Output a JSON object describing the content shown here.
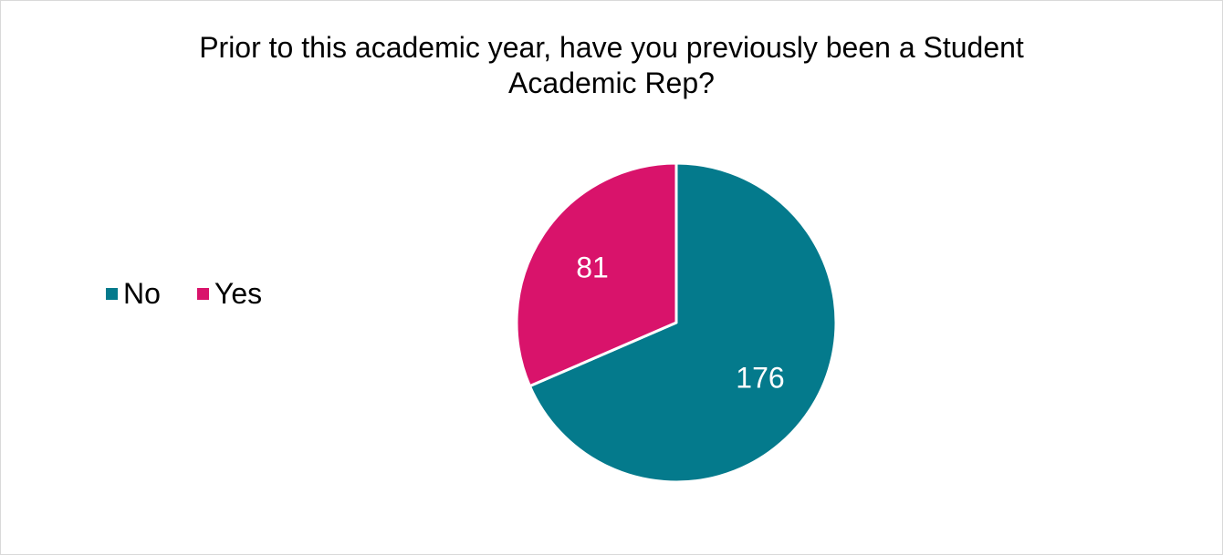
{
  "chart_data": {
    "type": "pie",
    "title": "Prior to this academic year, have you previously been a Student Academic Rep?",
    "title_lines": [
      "Prior to this academic year, have you previously been a Student",
      "Academic Rep?"
    ],
    "categories": [
      "No",
      "Yes"
    ],
    "values": [
      176,
      81
    ],
    "data_labels": [
      "176",
      "81"
    ],
    "colors": [
      "#047a8c",
      "#d9136b"
    ],
    "legend_position": "left",
    "start_angle_deg": 0,
    "direction": "clockwise"
  }
}
